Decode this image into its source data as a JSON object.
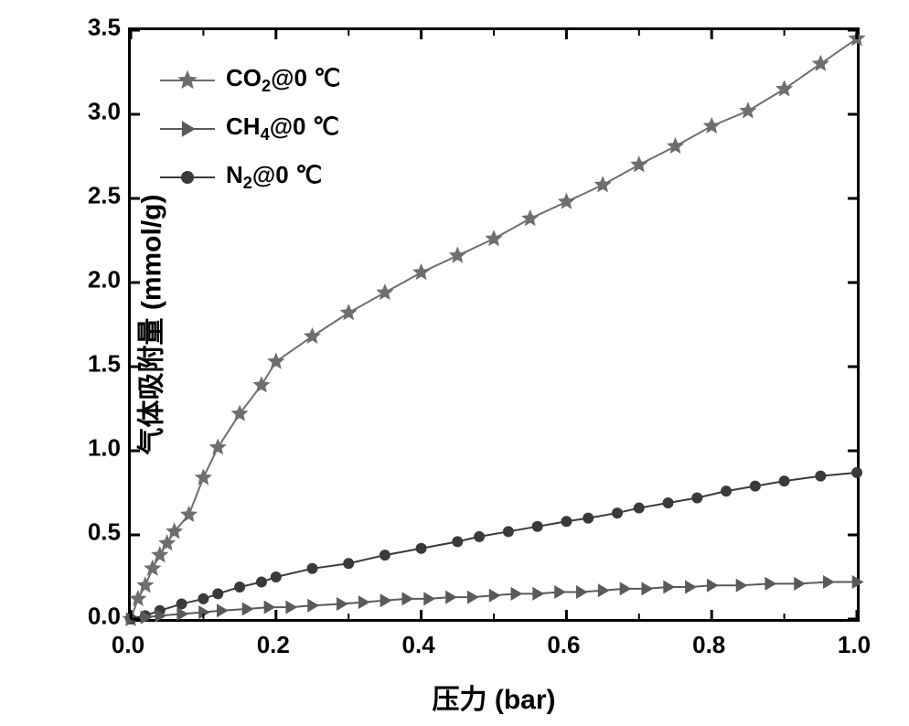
{
  "chart": {
    "type": "line",
    "xlabel": "压力 (bar)",
    "ylabel": "气体吸附量 (mmol/g)",
    "xlim": [
      0.0,
      1.0
    ],
    "ylim": [
      0.0,
      3.5
    ],
    "x_ticks_major": [
      0.0,
      0.2,
      0.4,
      0.6,
      0.8,
      1.0
    ],
    "y_ticks_major": [
      0.0,
      0.5,
      1.0,
      1.5,
      2.0,
      2.5,
      3.0,
      3.5
    ],
    "x_ticks_minor": [
      0.1,
      0.3,
      0.5,
      0.7,
      0.9
    ],
    "tick_direction": "in",
    "major_tick_length": 10,
    "minor_tick_length": 6,
    "axis_line_width": 3,
    "background_color": "#ffffff",
    "label_fontsize": 30,
    "tick_fontsize": 26,
    "font_weight": "bold",
    "series": [
      {
        "name": "CO2",
        "label_html": "CO<sub>2</sub>@0 ℃",
        "marker": "star",
        "marker_size": 14,
        "line_width": 2,
        "color": "#6e6e6e",
        "x": [
          0.0,
          0.01,
          0.02,
          0.03,
          0.04,
          0.05,
          0.06,
          0.08,
          0.1,
          0.12,
          0.15,
          0.18,
          0.2,
          0.25,
          0.3,
          0.35,
          0.4,
          0.45,
          0.5,
          0.55,
          0.6,
          0.65,
          0.7,
          0.75,
          0.8,
          0.85,
          0.9,
          0.95,
          1.0
        ],
        "y": [
          0.0,
          0.12,
          0.2,
          0.3,
          0.38,
          0.45,
          0.52,
          0.62,
          0.84,
          1.02,
          1.22,
          1.39,
          1.53,
          1.68,
          1.82,
          1.94,
          2.06,
          2.16,
          2.26,
          2.38,
          2.48,
          2.58,
          2.7,
          2.81,
          2.93,
          3.02,
          3.15,
          3.3,
          3.45
        ]
      },
      {
        "name": "N2",
        "label_html": "N<sub>2</sub>@0 ℃",
        "marker": "circle",
        "marker_size": 12,
        "line_width": 2,
        "color": "#3a3a3a",
        "x": [
          0.0,
          0.02,
          0.04,
          0.07,
          0.1,
          0.12,
          0.15,
          0.18,
          0.2,
          0.25,
          0.3,
          0.35,
          0.4,
          0.45,
          0.48,
          0.52,
          0.56,
          0.6,
          0.63,
          0.67,
          0.7,
          0.74,
          0.78,
          0.82,
          0.86,
          0.9,
          0.95,
          1.0
        ],
        "y": [
          0.0,
          0.02,
          0.05,
          0.09,
          0.12,
          0.15,
          0.19,
          0.22,
          0.25,
          0.3,
          0.33,
          0.38,
          0.42,
          0.46,
          0.49,
          0.52,
          0.55,
          0.58,
          0.6,
          0.63,
          0.66,
          0.69,
          0.72,
          0.76,
          0.79,
          0.82,
          0.85,
          0.87
        ]
      },
      {
        "name": "CH4",
        "label_html": "CH<sub>4</sub>@0 ℃",
        "marker": "triangle-right",
        "marker_size": 12,
        "line_width": 2,
        "color": "#5a5a5a",
        "x": [
          0.0,
          0.02,
          0.04,
          0.07,
          0.1,
          0.125,
          0.16,
          0.19,
          0.22,
          0.25,
          0.29,
          0.32,
          0.35,
          0.38,
          0.41,
          0.44,
          0.47,
          0.5,
          0.53,
          0.56,
          0.59,
          0.62,
          0.65,
          0.68,
          0.71,
          0.74,
          0.77,
          0.8,
          0.84,
          0.88,
          0.92,
          0.96,
          1.0
        ],
        "y": [
          0.0,
          0.01,
          0.02,
          0.03,
          0.04,
          0.05,
          0.06,
          0.07,
          0.07,
          0.08,
          0.09,
          0.1,
          0.11,
          0.12,
          0.12,
          0.13,
          0.13,
          0.14,
          0.15,
          0.15,
          0.16,
          0.16,
          0.17,
          0.18,
          0.18,
          0.19,
          0.19,
          0.2,
          0.2,
          0.21,
          0.21,
          0.22,
          0.22
        ]
      }
    ],
    "legend": {
      "position": "top-left",
      "items": [
        "CO2",
        "CH4",
        "N2"
      ]
    }
  }
}
